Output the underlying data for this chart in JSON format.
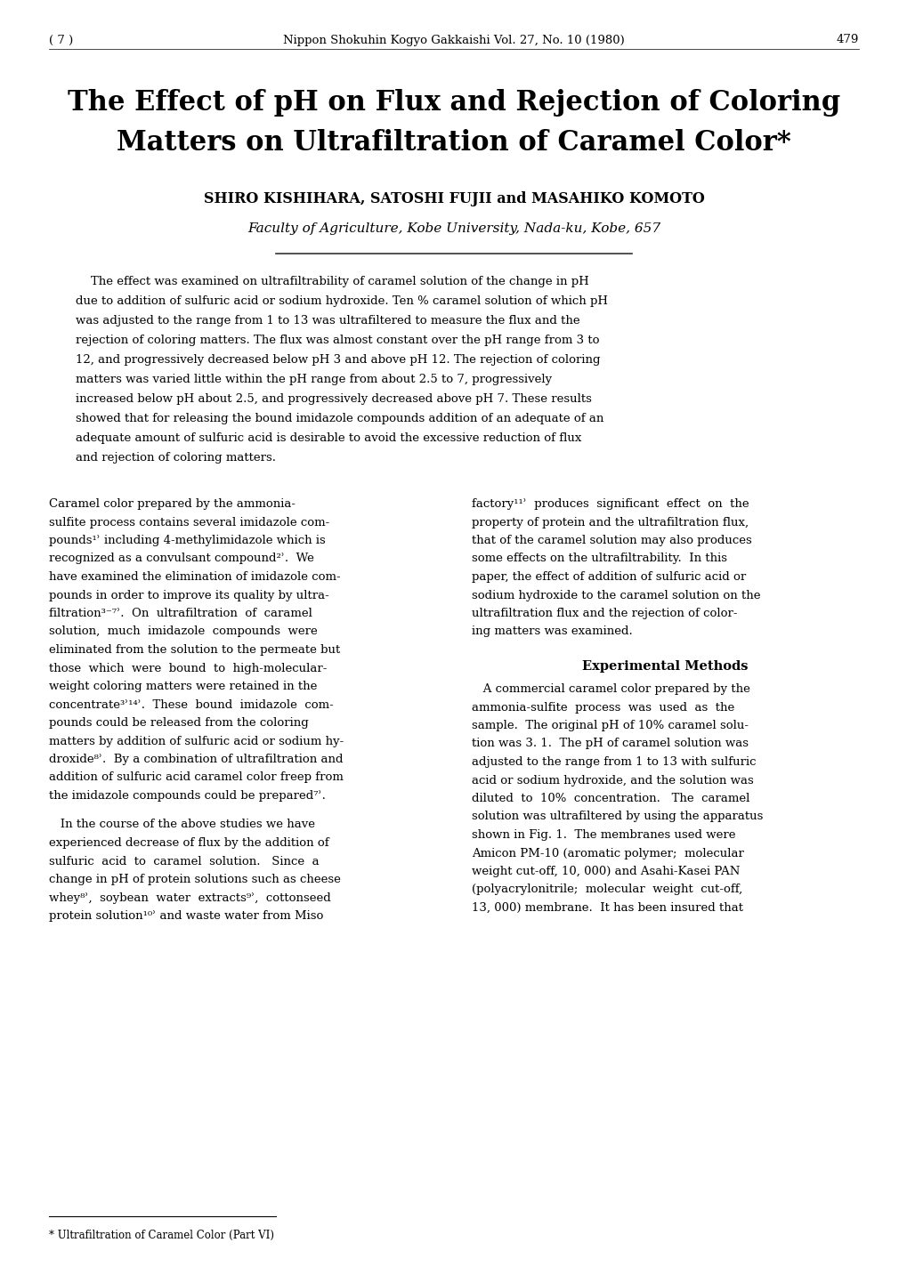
{
  "page_number_left": "( 7 )",
  "header_center": "Nippon Shokuhin Kogyo Gakkaishi Vol. 27, No. 10 (1980)",
  "page_number_right": "479",
  "title_line1": "The Effect of pH on Flux and Rejection of Coloring",
  "title_line2": "Matters on Ultrafiltration of Caramel Color*",
  "authors": "SHIRO KISHIHARA, SATOSHI FUJII and MASAHIKO KOMOTO",
  "affiliation": "Faculty of Agriculture, Kobe University, Nada-ku, Kobe, 657",
  "abstract_indent": "    The effect was examined on ultrafiltrability of caramel solution of the change in pH due to addition of sulfuric acid or sodium hydroxide. Ten % caramel solution of which pH was adjusted to the range from 1 to 13 was ultrafiltered to measure the flux and the rejection of coloring matters. The flux was almost constant over the pH range from 3 to 12, and progressively decreased below pH 3 and above pH 12. The rejection of coloring matters was varied little within the pH range from about 2.5 to 7, progressively increased below pH about 2.5, and progressively decreased above pH 7. These results showed that for releasing the bound imidazole compounds addition of an adequate of an adequate amount of sulfuric acid is desirable to avoid the excessive reduction of flux and rejection of coloring matters.",
  "left_col_para1_lines": [
    "Caramel color prepared by the ammonia-",
    "sulfite process contains several imidazole com-",
    "pounds¹ʾ including 4-methylimidazole which is",
    "recognized as a convulsant compound²ʾ.  We",
    "have examined the elimination of imidazole com-",
    "pounds in order to improve its quality by ultra-",
    "filtration³⁻⁷ʾ.  On  ultrafiltration  of  caramel",
    "solution,  much  imidazole  compounds  were",
    "eliminated from the solution to the permeate but",
    "those  which  were  bound  to  high-molecular-",
    "weight coloring matters were retained in the",
    "concentrate³ʾ¹⁴ʾ.  These  bound  imidazole  com-",
    "pounds could be released from the coloring",
    "matters by addition of sulfuric acid or sodium hy-",
    "droxide⁸ʾ.  By a combination of ultrafiltration and",
    "addition of sulfuric acid caramel color freep from",
    "the imidazole compounds could be prepared⁷ʾ."
  ],
  "left_col_para2_lines": [
    "   In the course of the above studies we have",
    "experienced decrease of flux by the addition of",
    "sulfuric  acid  to  caramel  solution.   Since  a",
    "change in pH of protein solutions such as cheese",
    "whey⁸ʾ,  soybean  water  extracts⁹ʾ,  cottonseed",
    "protein solution¹⁰ʾ and waste water from Miso"
  ],
  "right_col_para1_lines": [
    "factory¹¹ʾ  produces  significant  effect  on  the",
    "property of protein and the ultrafiltration flux,",
    "that of the caramel solution may also produces",
    "some effects on the ultrafiltrability.  In this",
    "paper, the effect of addition of sulfuric acid or",
    "sodium hydroxide to the caramel solution on the",
    "ultrafiltration flux and the rejection of color-",
    "ing matters was examined."
  ],
  "experimental_heading": "Experimental Methods",
  "right_col_para2_lines": [
    "   A commercial caramel color prepared by the",
    "ammonia-sulfite  process  was  used  as  the",
    "sample.  The original pH of 10% caramel solu-",
    "tion was 3. 1.  The pH of caramel solution was",
    "adjusted to the range from 1 to 13 with sulfuric",
    "acid or sodium hydroxide, and the solution was",
    "diluted  to  10%  concentration.   The  caramel",
    "solution was ultrafiltered by using the apparatus",
    "shown in Fig. 1.  The membranes used were",
    "Amicon PM-10 (aromatic polymer;  molecular",
    "weight cut-off, 10, 000) and Asahi-Kasei PAN",
    "(polyacrylonitrile;  molecular  weight  cut-off,",
    "13, 000) membrane.  It has been insured that"
  ],
  "footnote": "* Ultrafiltration of Caramel Color (Part VI)",
  "background_color": "#ffffff",
  "text_color": "#000000",
  "fig_width": 10.2,
  "fig_height": 14.42,
  "dpi": 100
}
